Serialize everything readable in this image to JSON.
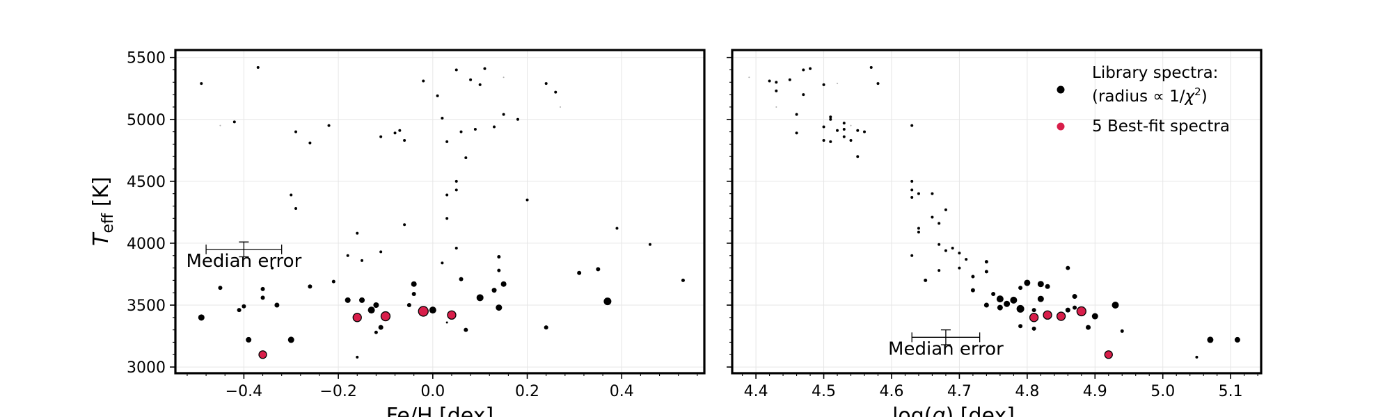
{
  "chart_data": [
    {
      "type": "scatter",
      "xlabel": "Fe/H [dex]",
      "ylabel_main": "T",
      "ylabel_sub": "eff",
      "ylabel_unit": " [K]",
      "xlim": [
        -0.545,
        0.575
      ],
      "ylim": [
        2950,
        5560
      ],
      "xticks": [
        -0.4,
        -0.2,
        0.0,
        0.2,
        0.4
      ],
      "xtick_labels": [
        "−0.4",
        "−0.2",
        "0.0",
        "0.2",
        "0.4"
      ],
      "yticks": [
        3000,
        3500,
        4000,
        4500,
        5000,
        5500
      ],
      "ytick_labels": [
        "3000",
        "3500",
        "4000",
        "4500",
        "5000",
        "5500"
      ],
      "grid": true,
      "annotation": {
        "label": "Median error",
        "x": -0.4,
        "y": 3950,
        "xerr": 0.08,
        "yerr": 60
      },
      "series": [
        {
          "kind": "library",
          "points": [
            [
              -0.49,
              5290,
              2
            ],
            [
              -0.37,
              5420,
              2
            ],
            [
              -0.45,
              4950,
              1
            ],
            [
              -0.42,
              4980,
              2
            ],
            [
              -0.29,
              4900,
              2
            ],
            [
              -0.26,
              4810,
              2
            ],
            [
              -0.22,
              4950,
              2
            ],
            [
              -0.3,
              4390,
              2
            ],
            [
              -0.29,
              4280,
              2
            ],
            [
              -0.02,
              5310,
              2
            ],
            [
              0.01,
              5190,
              2
            ],
            [
              0.05,
              5400,
              2
            ],
            [
              0.08,
              5320,
              2
            ],
            [
              0.1,
              5280,
              2
            ],
            [
              0.11,
              5410,
              2
            ],
            [
              0.15,
              5340,
              1
            ],
            [
              0.24,
              5290,
              2
            ],
            [
              0.26,
              5220,
              2
            ],
            [
              0.27,
              5100,
              1
            ],
            [
              0.02,
              5010,
              2
            ],
            [
              0.15,
              5040,
              2
            ],
            [
              0.18,
              5000,
              2
            ],
            [
              -0.11,
              4860,
              2
            ],
            [
              -0.08,
              4890,
              2
            ],
            [
              -0.07,
              4910,
              2
            ],
            [
              -0.06,
              4830,
              2
            ],
            [
              0.03,
              4820,
              2
            ],
            [
              0.06,
              4900,
              2
            ],
            [
              0.09,
              4920,
              2
            ],
            [
              0.13,
              4940,
              2
            ],
            [
              0.07,
              4690,
              2
            ],
            [
              0.05,
              4500,
              2
            ],
            [
              0.05,
              4430,
              2
            ],
            [
              0.03,
              4390,
              2
            ],
            [
              0.2,
              4350,
              2
            ],
            [
              0.03,
              4200,
              2
            ],
            [
              -0.06,
              4150,
              2
            ],
            [
              0.39,
              4120,
              2
            ],
            [
              -0.16,
              4080,
              2
            ],
            [
              0.05,
              3960,
              2
            ],
            [
              0.46,
              3990,
              2
            ],
            [
              -0.11,
              3930,
              2
            ],
            [
              -0.18,
              3900,
              2
            ],
            [
              -0.15,
              3860,
              2
            ],
            [
              0.02,
              3840,
              2
            ],
            [
              0.14,
              3890,
              2.5
            ],
            [
              -0.34,
              3800,
              2
            ],
            [
              0.14,
              3780,
              2.5
            ],
            [
              0.31,
              3760,
              3
            ],
            [
              0.35,
              3790,
              3
            ],
            [
              0.53,
              3700,
              2.5
            ],
            [
              -0.21,
              3690,
              2.5
            ],
            [
              0.06,
              3710,
              3
            ],
            [
              0.15,
              3670,
              4
            ],
            [
              -0.26,
              3650,
              3
            ],
            [
              -0.45,
              3640,
              3
            ],
            [
              -0.36,
              3630,
              3
            ],
            [
              -0.04,
              3670,
              4
            ],
            [
              -0.04,
              3590,
              3
            ],
            [
              0.13,
              3620,
              3.5
            ],
            [
              -0.36,
              3560,
              3
            ],
            [
              -0.18,
              3540,
              4
            ],
            [
              -0.15,
              3540,
              4
            ],
            [
              0.1,
              3560,
              5
            ],
            [
              -0.33,
              3500,
              3.5
            ],
            [
              -0.4,
              3490,
              3
            ],
            [
              -0.12,
              3500,
              4
            ],
            [
              -0.05,
              3500,
              3
            ],
            [
              -0.13,
              3460,
              5
            ],
            [
              -0.41,
              3460,
              3
            ],
            [
              0.14,
              3480,
              4.5
            ],
            [
              0.37,
              3530,
              5.5
            ],
            [
              0.0,
              3460,
              5
            ],
            [
              -0.49,
              3400,
              4.5
            ],
            [
              -0.1,
              3400,
              3
            ],
            [
              -0.11,
              3320,
              3.5
            ],
            [
              -0.12,
              3280,
              2.5
            ],
            [
              0.03,
              3360,
              1.5
            ],
            [
              0.07,
              3300,
              3
            ],
            [
              0.24,
              3320,
              3
            ],
            [
              -0.39,
              3220,
              4
            ],
            [
              -0.3,
              3220,
              4.5
            ],
            [
              -0.16,
              3080,
              2
            ]
          ]
        },
        {
          "kind": "best-fit",
          "points": [
            [
              -0.36,
              3100,
              5.5
            ],
            [
              -0.16,
              3400,
              6
            ],
            [
              -0.1,
              3410,
              6.5
            ],
            [
              -0.02,
              3450,
              7
            ],
            [
              0.04,
              3420,
              6
            ]
          ]
        }
      ]
    },
    {
      "type": "scatter",
      "xlabel_main": "log(",
      "xlabel_italic": "g",
      "xlabel_tail": ") [dex]",
      "xlim": [
        4.365,
        5.145
      ],
      "ylim": [
        2950,
        5560
      ],
      "xticks": [
        4.4,
        4.5,
        4.6,
        4.7,
        4.8,
        4.9,
        5.0,
        5.1
      ],
      "xtick_labels": [
        "4.4",
        "4.5",
        "4.6",
        "4.7",
        "4.8",
        "4.9",
        "5.0",
        "5.1"
      ],
      "yticks": [
        3000,
        3500,
        4000,
        4500,
        5000,
        5500
      ],
      "grid": true,
      "annotation": {
        "label": "Median error",
        "x": 4.68,
        "y": 3240,
        "xerr": 0.05,
        "yerr": 60
      },
      "legend": {
        "placement": "top-right",
        "entries": [
          {
            "line1": "Library spectra:",
            "line2_pre": "(radius ∝ 1/",
            "line2_italic": "χ",
            "line2_sup": "2",
            "line2_post": ")",
            "color": "#000000"
          },
          {
            "line1": "5 Best-fit spectra",
            "color": "#d81e4a"
          }
        ]
      },
      "series": [
        {
          "kind": "library",
          "points": [
            [
              4.39,
              5340,
              1
            ],
            [
              4.42,
              5310,
              2
            ],
            [
              4.43,
              5300,
              2
            ],
            [
              4.45,
              5320,
              2
            ],
            [
              4.47,
              5400,
              2
            ],
            [
              4.48,
              5410,
              2
            ],
            [
              4.43,
              5230,
              2
            ],
            [
              4.47,
              5200,
              2
            ],
            [
              4.43,
              5100,
              1
            ],
            [
              4.5,
              5280,
              2
            ],
            [
              4.52,
              5290,
              1
            ],
            [
              4.57,
              5420,
              2
            ],
            [
              4.58,
              5290,
              2
            ],
            [
              4.46,
              5040,
              2
            ],
            [
              4.51,
              5000,
              2
            ],
            [
              4.51,
              5020,
              2
            ],
            [
              4.53,
              4970,
              2
            ],
            [
              4.54,
              4950,
              1
            ],
            [
              4.5,
              4940,
              2
            ],
            [
              4.52,
              4910,
              2
            ],
            [
              4.53,
              4920,
              2
            ],
            [
              4.55,
              4910,
              2
            ],
            [
              4.56,
              4900,
              2
            ],
            [
              4.46,
              4890,
              2
            ],
            [
              4.53,
              4860,
              2
            ],
            [
              4.5,
              4830,
              2
            ],
            [
              4.51,
              4820,
              2
            ],
            [
              4.54,
              4830,
              2
            ],
            [
              4.55,
              4700,
              2
            ],
            [
              4.63,
              4950,
              2
            ],
            [
              4.63,
              4500,
              2
            ],
            [
              4.63,
              4430,
              2
            ],
            [
              4.63,
              4370,
              2
            ],
            [
              4.64,
              4400,
              2
            ],
            [
              4.66,
              4400,
              2
            ],
            [
              4.64,
              4120,
              2
            ],
            [
              4.64,
              4090,
              2
            ],
            [
              4.68,
              4270,
              2
            ],
            [
              4.66,
              4210,
              2
            ],
            [
              4.67,
              4160,
              2
            ],
            [
              4.67,
              3990,
              2
            ],
            [
              4.68,
              3940,
              2
            ],
            [
              4.69,
              3960,
              2
            ],
            [
              4.7,
              3920,
              2
            ],
            [
              4.71,
              3870,
              2
            ],
            [
              4.63,
              3900,
              2
            ],
            [
              4.67,
              3780,
              2
            ],
            [
              4.7,
              3800,
              2
            ],
            [
              4.74,
              3850,
              2.5
            ],
            [
              4.74,
              3770,
              2.5
            ],
            [
              4.65,
              3700,
              2.5
            ],
            [
              4.72,
              3730,
              2.5
            ],
            [
              4.72,
              3620,
              3
            ],
            [
              4.75,
              3590,
              3
            ],
            [
              4.79,
              3640,
              3
            ],
            [
              4.86,
              3800,
              3
            ],
            [
              4.8,
              3680,
              4.5
            ],
            [
              4.82,
              3670,
              4.5
            ],
            [
              4.83,
              3650,
              3.5
            ],
            [
              4.76,
              3550,
              5
            ],
            [
              4.78,
              3540,
              5
            ],
            [
              4.82,
              3550,
              4.5
            ],
            [
              4.87,
              3570,
              3.5
            ],
            [
              4.74,
              3500,
              3.5
            ],
            [
              4.76,
              3480,
              4
            ],
            [
              4.77,
              3510,
              4.5
            ],
            [
              4.79,
              3470,
              5.5
            ],
            [
              4.81,
              3460,
              3
            ],
            [
              4.86,
              3460,
              3.5
            ],
            [
              4.87,
              3480,
              3
            ],
            [
              4.93,
              3500,
              5
            ],
            [
              4.9,
              3410,
              4.5
            ],
            [
              4.79,
              3330,
              3
            ],
            [
              4.81,
              3310,
              3
            ],
            [
              4.89,
              3320,
              3.5
            ],
            [
              4.94,
              3290,
              2.5
            ],
            [
              5.07,
              3220,
              4.5
            ],
            [
              5.11,
              3220,
              4
            ],
            [
              5.05,
              3080,
              2
            ]
          ]
        },
        {
          "kind": "best-fit",
          "points": [
            [
              4.81,
              3400,
              6
            ],
            [
              4.83,
              3420,
              6
            ],
            [
              4.85,
              3410,
              6
            ],
            [
              4.88,
              3450,
              6.5
            ],
            [
              4.92,
              3100,
              5.5
            ]
          ]
        }
      ]
    }
  ],
  "colors": {
    "library": "#000000",
    "library_faint": "#b0b0b0",
    "best_fit": "#d81e4a",
    "grid": "#e6e6e6"
  }
}
